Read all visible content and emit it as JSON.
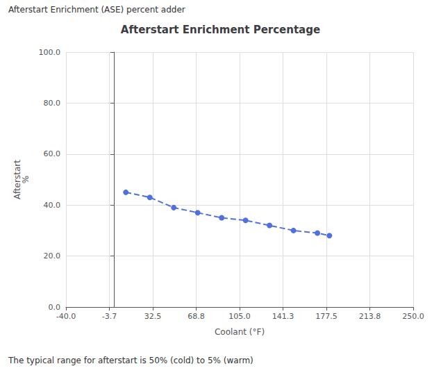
{
  "chart_data": {
    "type": "line",
    "title": "Afterstart Enrichment Percentage",
    "xlabel": "Coolant (°F)",
    "ylabel": "Afterstart\n%",
    "annotations": [
      "Afterstart Enrichment (ASE) percent adder",
      "The typical range for afterstart is 50% (cold) to 5% (warm)"
    ],
    "x": [
      10.0,
      30.0,
      50.0,
      70.0,
      90.0,
      110.0,
      130.0,
      150.0,
      170.0,
      180.0
    ],
    "values": [
      45,
      43,
      39,
      37,
      35,
      34,
      32,
      30,
      29,
      28
    ],
    "xlim": [
      -40.0,
      250.0
    ],
    "ylim": [
      0.0,
      100.0
    ],
    "xticks": [
      {
        "value": -40.0,
        "label": "-40.0"
      },
      -3.7,
      32.5,
      68.8,
      {
        "value": 105.0,
        "label": "105.0"
      },
      141.3,
      177.5,
      213.8,
      {
        "value": 250.0,
        "label": "250.0"
      }
    ],
    "yticks": [
      {
        "value": 0.0,
        "label": "0.0"
      },
      {
        "value": 20.0,
        "label": "20.0"
      },
      {
        "value": 40.0,
        "label": "40.0"
      },
      {
        "value": 60.0,
        "label": "60.0"
      },
      {
        "value": 80.0,
        "label": "80.0"
      },
      {
        "value": 100.0,
        "label": "100.0"
      }
    ],
    "grid": true,
    "marker": "circle",
    "line_style": "dashed"
  }
}
